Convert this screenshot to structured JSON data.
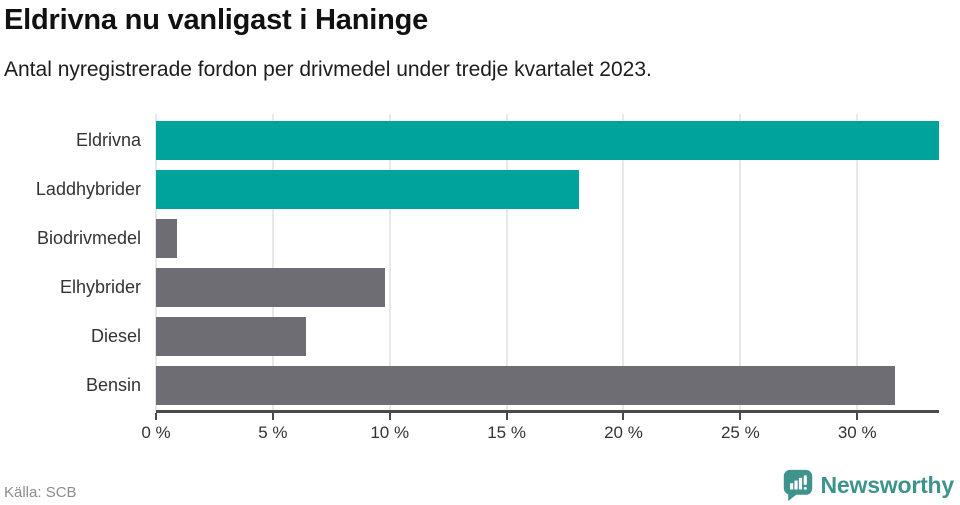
{
  "header": {
    "title": "Eldrivna nu vanligast i Haninge",
    "subtitle": "Antal nyregistrerade fordon per drivmedel under tredje kvartalet 2023."
  },
  "footer": {
    "source": "Källa: SCB",
    "brand": "Newsworthy",
    "brand_icon": "bar-chart-speech-bubble-icon"
  },
  "colors": {
    "highlight_bar": "#00a39b",
    "default_bar": "#6e6d73",
    "gridline": "#e8e8e8",
    "axis": "#4a4a4a",
    "logo_teal": "#3e938d",
    "title_text": "#111111",
    "label_text": "#333333",
    "source_text": "#8c8c8c"
  },
  "chart_data": {
    "type": "bar",
    "orientation": "horizontal",
    "title": "Eldrivna nu vanligast i Haninge",
    "subtitle": "Antal nyregistrerade fordon per drivmedel under tredje kvartalet 2023.",
    "categories": [
      "Eldrivna",
      "Laddhybrider",
      "Biodrivmedel",
      "Elhybrider",
      "Diesel",
      "Bensin"
    ],
    "values": [
      33.5,
      18.1,
      0.9,
      9.8,
      6.4,
      31.6
    ],
    "unit": "%",
    "bar_colors": [
      "#00a39b",
      "#00a39b",
      "#6e6d73",
      "#6e6d73",
      "#6e6d73",
      "#6e6d73"
    ],
    "xlim": [
      0,
      33.5
    ],
    "xticks": [
      0,
      5,
      10,
      15,
      20,
      25,
      30
    ],
    "xtick_labels": [
      "0 %",
      "5 %",
      "10 %",
      "15 %",
      "20 %",
      "25 %",
      "30 %"
    ],
    "grid": true,
    "legend": "none",
    "source": "Källa: SCB"
  }
}
